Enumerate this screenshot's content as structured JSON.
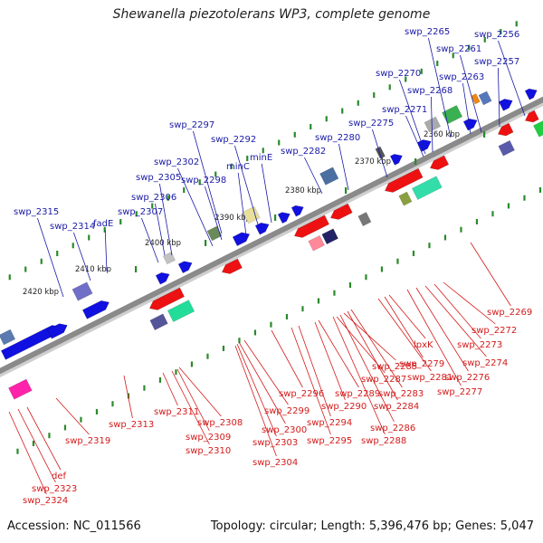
{
  "title": "Shewanella piezotolerans WP3, complete genome",
  "footer": {
    "accession": "Accession: NC_011566",
    "summary": "Topology: circular; Length: 5,396,476 bp; Genes: 5,047"
  },
  "colors": {
    "forward_label": "#1a1aa6",
    "reverse_label": "#d41a1a",
    "forward_arrow": "#1010e0",
    "reverse_arrow": "#ee1111",
    "backbone": "#8a8a8a",
    "tick": "#2a8a2a"
  },
  "kbp_ticks": [
    "2420 kbp",
    "2410 kbp",
    "2400 kbp",
    "2390 kbp",
    "2380 kbp",
    "2370 kbp",
    "2360 kbp"
  ],
  "forward_genes": [
    "swp_2315",
    "swp_2314",
    "fadE",
    "swp_2307",
    "swp_2306",
    "swp_2305",
    "swp_2302",
    "swp_2298",
    "swp_2297",
    "minC",
    "swp_2292",
    "minE",
    "swp_2282",
    "swp_2280",
    "swp_2275",
    "swp_2271",
    "swp_2270",
    "swp_2268",
    "swp_2265",
    "swp_2263",
    "swp_2261",
    "swp_2257",
    "swp_2256"
  ],
  "reverse_genes": [
    "swp_2324",
    "swp_2323",
    "def",
    "swp_2319",
    "swp_2313",
    "swp_2311",
    "swp_2310",
    "swp_2309",
    "swp_2308",
    "swp_2304",
    "swp_2303",
    "swp_2300",
    "swp_2299",
    "swp_2296",
    "swp_2295",
    "swp_2294",
    "swp_2290",
    "swp_2289",
    "swp_2288",
    "swp_2287",
    "swp_2286",
    "swp_2285",
    "swp_2284",
    "swp_2283",
    "swp_2281",
    "swp_2279",
    "lpxK",
    "swp_2277",
    "swp_2276",
    "swp_2274",
    "swp_2273",
    "swp_2272",
    "swp_2269"
  ]
}
